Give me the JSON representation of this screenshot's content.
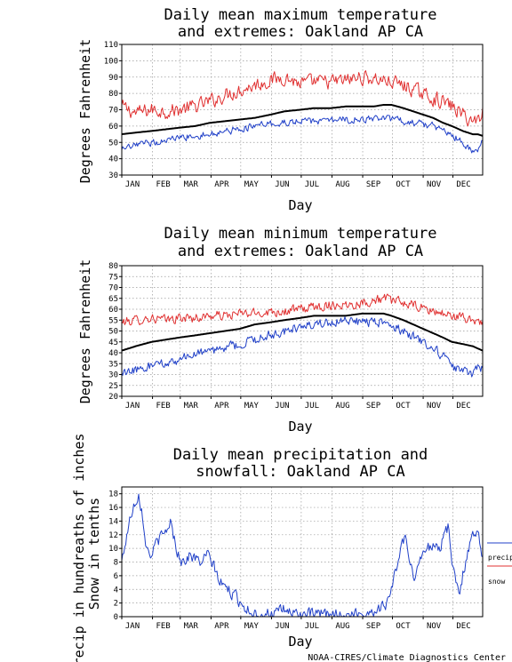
{
  "credit": "NOAA-CIRES/Climate Diagnostics Center",
  "chart_data": [
    {
      "type": "line",
      "title": [
        "Daily mean maximum temperature",
        "and extremes: Oakland AP CA"
      ],
      "xlabel": "Day",
      "ylabel": "Degrees Fahrenheit",
      "months": [
        "JAN",
        "FEB",
        "MAR",
        "APR",
        "MAY",
        "JUN",
        "JUL",
        "AUG",
        "SEP",
        "OCT",
        "NOV",
        "DEC"
      ],
      "ylim": [
        30,
        110
      ],
      "yticks": [
        30,
        40,
        50,
        60,
        70,
        80,
        90,
        100,
        110
      ],
      "grid": true,
      "series": [
        {
          "key": "max",
          "color": "#e03030",
          "x": [
            1,
            15,
            31,
            45,
            59,
            75,
            90,
            105,
            120,
            135,
            151,
            165,
            181,
            195,
            212,
            227,
            243,
            255,
            265,
            273,
            285,
            300,
            315,
            325,
            334,
            345,
            355,
            360,
            365
          ],
          "values": [
            72,
            68,
            70,
            69,
            70,
            72,
            75,
            79,
            82,
            85,
            88,
            90,
            86,
            87,
            87,
            88,
            90,
            89,
            88,
            87,
            85,
            81,
            77,
            75,
            72,
            67,
            63,
            64,
            69
          ],
          "noise": 4
        },
        {
          "key": "mean",
          "color": "#000000",
          "x": [
            1,
            15,
            31,
            45,
            59,
            75,
            90,
            105,
            120,
            135,
            151,
            165,
            181,
            195,
            212,
            227,
            243,
            255,
            265,
            273,
            285,
            300,
            315,
            325,
            334,
            345,
            355,
            360,
            365
          ],
          "values": [
            55,
            56,
            57,
            58,
            59,
            60,
            62,
            63,
            64,
            65,
            67,
            69,
            70,
            71,
            71,
            72,
            72,
            72,
            73,
            73,
            71,
            68,
            65,
            62,
            60,
            57,
            55,
            55,
            54
          ],
          "noise": 0
        },
        {
          "key": "min",
          "color": "#2040c8",
          "x": [
            1,
            15,
            31,
            45,
            59,
            75,
            90,
            105,
            120,
            135,
            151,
            165,
            181,
            195,
            212,
            227,
            243,
            255,
            265,
            273,
            285,
            300,
            315,
            325,
            334,
            345,
            355,
            360,
            365
          ],
          "values": [
            45,
            48,
            50,
            51,
            53,
            54,
            55,
            57,
            58,
            60,
            61,
            62,
            63,
            63,
            63,
            64,
            64,
            64,
            64,
            64,
            63,
            62,
            60,
            57,
            55,
            50,
            45,
            46,
            50
          ],
          "noise": 2
        }
      ]
    },
    {
      "type": "line",
      "title": [
        "Daily mean minimum temperature",
        "and extremes: Oakland AP CA"
      ],
      "xlabel": "Day",
      "ylabel": "Degrees Fahrenheit",
      "months": [
        "JAN",
        "FEB",
        "MAR",
        "APR",
        "MAY",
        "JUN",
        "JUL",
        "AUG",
        "SEP",
        "OCT",
        "NOV",
        "DEC"
      ],
      "ylim": [
        20,
        80
      ],
      "yticks": [
        20,
        25,
        30,
        35,
        40,
        45,
        50,
        55,
        60,
        65,
        70,
        75,
        80
      ],
      "grid": true,
      "series": [
        {
          "key": "max",
          "color": "#e03030",
          "x": [
            1,
            15,
            31,
            45,
            59,
            75,
            90,
            105,
            120,
            135,
            151,
            165,
            181,
            195,
            212,
            227,
            243,
            255,
            265,
            273,
            285,
            300,
            315,
            325,
            334,
            345,
            355,
            360,
            365
          ],
          "values": [
            54,
            55,
            56,
            55,
            56,
            56,
            57,
            57,
            58,
            58,
            59,
            59,
            60,
            61,
            62,
            62,
            63,
            64,
            65,
            64,
            63,
            61,
            59,
            58,
            57,
            56,
            55,
            55,
            54
          ],
          "noise": 2
        },
        {
          "key": "mean",
          "color": "#000000",
          "x": [
            1,
            15,
            31,
            45,
            59,
            75,
            90,
            105,
            120,
            135,
            151,
            165,
            181,
            195,
            212,
            227,
            243,
            255,
            265,
            273,
            285,
            300,
            315,
            325,
            334,
            345,
            355,
            360,
            365
          ],
          "values": [
            41,
            43,
            45,
            46,
            47,
            48,
            49,
            50,
            51,
            53,
            54,
            55,
            56,
            57,
            57,
            57,
            58,
            58,
            58,
            57,
            55,
            52,
            49,
            47,
            45,
            44,
            43,
            42,
            41
          ],
          "noise": 0
        },
        {
          "key": "min",
          "color": "#2040c8",
          "x": [
            1,
            15,
            31,
            45,
            59,
            75,
            90,
            105,
            120,
            135,
            151,
            165,
            181,
            195,
            212,
            227,
            243,
            255,
            265,
            273,
            285,
            300,
            315,
            325,
            334,
            345,
            355,
            360,
            365
          ],
          "values": [
            30,
            32,
            34,
            35,
            37,
            39,
            41,
            42,
            44,
            46,
            48,
            50,
            52,
            53,
            54,
            55,
            54,
            54,
            54,
            52,
            50,
            46,
            42,
            38,
            34,
            32,
            29,
            33,
            33
          ],
          "noise": 2
        }
      ]
    },
    {
      "type": "line",
      "title": [
        "Daily mean precipitation and",
        "snowfall: Oakland AP CA"
      ],
      "xlabel": "Day",
      "ylabel": [
        "Precip in hundreaths of inches",
        "Snow in tenths"
      ],
      "months": [
        "JAN",
        "FEB",
        "MAR",
        "APR",
        "MAY",
        "JUN",
        "JUL",
        "AUG",
        "SEP",
        "OCT",
        "NOV",
        "DEC"
      ],
      "ylim": [
        0,
        19
      ],
      "yticks": [
        0,
        2,
        4,
        6,
        8,
        10,
        12,
        14,
        16,
        18
      ],
      "grid": true,
      "legend": {
        "placement": "right",
        "entries": [
          "precip",
          "snow"
        ]
      },
      "series": [
        {
          "key": "precip",
          "name": "precip",
          "color": "#2040c8",
          "x": [
            1,
            6,
            12,
            18,
            22,
            26,
            32,
            36,
            44,
            50,
            56,
            62,
            70,
            80,
            88,
            95,
            100,
            108,
            115,
            122,
            128,
            135,
            142,
            150,
            158,
            165,
            175,
            185,
            200,
            215,
            230,
            245,
            258,
            268,
            275,
            282,
            287,
            290,
            292,
            296,
            300,
            305,
            310,
            316,
            322,
            326,
            330,
            334,
            338,
            342,
            346,
            350,
            355,
            360,
            365
          ],
          "values": [
            8,
            12,
            16,
            18,
            15,
            10,
            9,
            11,
            12,
            14,
            10,
            8,
            9,
            8,
            9,
            7,
            5,
            4,
            3,
            2,
            1,
            0.5,
            0.5,
            0.5,
            0.5,
            1,
            0.5,
            0.3,
            0.3,
            0.3,
            0.3,
            0.5,
            1,
            2,
            5,
            10,
            12,
            9,
            7,
            6,
            8,
            9,
            10,
            11,
            10,
            12,
            13,
            8,
            5,
            4,
            7,
            9,
            12,
            13,
            9
          ],
          "noise": 0.8
        },
        {
          "key": "snow",
          "name": "snow",
          "color": "#e03030",
          "x": [
            1,
            365
          ],
          "values": [
            0,
            0
          ],
          "noise": 0
        }
      ]
    }
  ]
}
